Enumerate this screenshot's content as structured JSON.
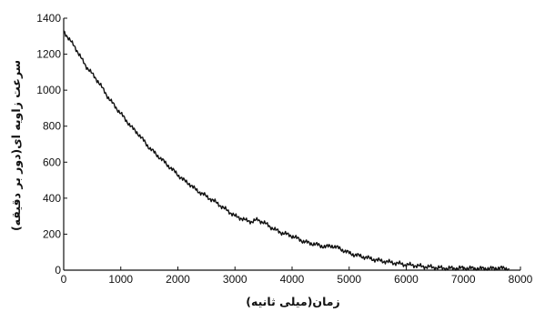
{
  "chart_data": {
    "type": "line",
    "title": "",
    "xlabel": "زمان(میلی ثانیه)",
    "ylabel": "سرعت زاویه ای(دور بر دقیقه)",
    "xlim": [
      0,
      8000
    ],
    "ylim": [
      0,
      1400
    ],
    "xticks": [
      0,
      1000,
      2000,
      3000,
      4000,
      5000,
      6000,
      7000,
      8000
    ],
    "yticks": [
      0,
      200,
      400,
      600,
      800,
      1000,
      1200,
      1400
    ],
    "grid": false,
    "line_color": "#111111",
    "series": [
      {
        "x": [
          0,
          100,
          200,
          300,
          400,
          500,
          600,
          700,
          800,
          900,
          1000,
          1100,
          1200,
          1300,
          1400,
          1500,
          1600,
          1700,
          1800,
          1900,
          2000,
          2100,
          2200,
          2300,
          2400,
          2500,
          2600,
          2700,
          2800,
          2900,
          3000,
          3100,
          3200,
          3300,
          3400,
          3500,
          3600,
          3700,
          3800,
          3900,
          4000,
          4100,
          4200,
          4300,
          4400,
          4500,
          4600,
          4700,
          4800,
          4900,
          5000,
          5100,
          5200,
          5300,
          5400,
          5500,
          5600,
          5700,
          5800,
          5900,
          6000,
          6100,
          6200,
          6300,
          6400,
          6500,
          6600,
          6700,
          6800,
          6900,
          7000,
          7100,
          7200,
          7300,
          7400,
          7500,
          7600,
          7700,
          7800
        ],
        "y": [
          1330,
          1280,
          1240,
          1180,
          1130,
          1090,
          1050,
          1000,
          950,
          910,
          870,
          830,
          790,
          760,
          720,
          680,
          650,
          620,
          590,
          560,
          530,
          500,
          480,
          450,
          430,
          410,
          390,
          370,
          345,
          325,
          300,
          290,
          275,
          270,
          280,
          265,
          245,
          225,
          210,
          200,
          190,
          175,
          160,
          150,
          145,
          135,
          130,
          135,
          125,
          110,
          95,
          85,
          78,
          70,
          62,
          55,
          50,
          45,
          40,
          35,
          30,
          28,
          24,
          20,
          18,
          15,
          12,
          10,
          10,
          10,
          12,
          10,
          10,
          8,
          10,
          8,
          12,
          10,
          10
        ]
      }
    ]
  }
}
